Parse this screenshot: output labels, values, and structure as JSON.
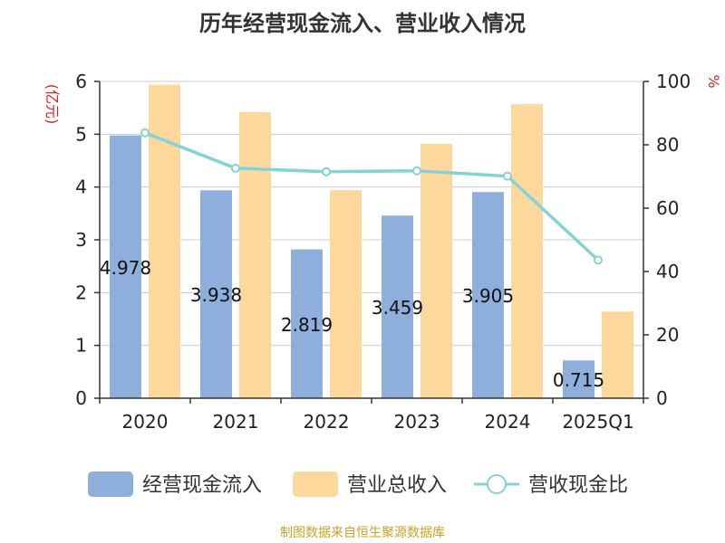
{
  "chart_data": {
    "type": "bar",
    "title": "历年经营现金流入、营业收入情况",
    "ylabel_left": "(亿元)",
    "ylabel_right": "%",
    "categories": [
      "2020",
      "2021",
      "2022",
      "2023",
      "2024",
      "2025Q1"
    ],
    "ylim_left": [
      0,
      6
    ],
    "yticks_left": [
      "0",
      "1",
      "2",
      "3",
      "4",
      "5",
      "6"
    ],
    "ylim_right": [
      0,
      100
    ],
    "yticks_right": [
      "0",
      "20",
      "40",
      "60",
      "80",
      "100"
    ],
    "grid": true,
    "legend_position": "bottom",
    "series": [
      {
        "name": "经营现金流入",
        "type": "bar",
        "axis": "left",
        "color": "#8eaedb",
        "values": [
          4.978,
          3.938,
          2.819,
          3.459,
          3.905,
          0.715
        ],
        "labels": [
          "4.978",
          "3.938",
          "2.819",
          "3.459",
          "3.905",
          "0.715"
        ]
      },
      {
        "name": "营业总收入",
        "type": "bar",
        "axis": "left",
        "color": "#fdd89d",
        "values": [
          5.94,
          5.42,
          3.94,
          4.82,
          5.57,
          1.64
        ]
      },
      {
        "name": "营收现金比",
        "type": "line",
        "axis": "right",
        "color": "#83d3d5",
        "values": [
          83.8,
          72.6,
          71.5,
          71.8,
          70.1,
          43.6
        ]
      }
    ]
  },
  "footer": {
    "source": "制图数据来自恒生聚源数据库"
  }
}
